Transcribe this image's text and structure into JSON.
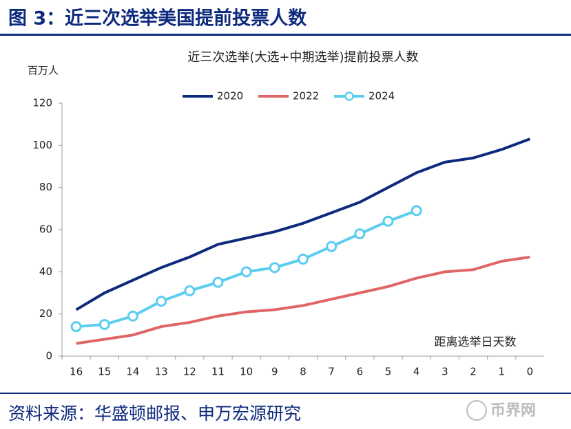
{
  "header": {
    "title": "图 3：近三次选举美国提前投票人数"
  },
  "footer": {
    "source": "资料来源：华盛顿邮报、申万宏源研究",
    "watermark": "币界网"
  },
  "chart_data": {
    "type": "line",
    "title": "近三次选举(大选+中期选举)提前投票人数",
    "y_label": "百万人",
    "x_label": "距离选举日天数",
    "categories": [
      "16",
      "15",
      "14",
      "13",
      "12",
      "11",
      "10",
      "9",
      "8",
      "7",
      "6",
      "5",
      "4",
      "3",
      "2",
      "1",
      "0"
    ],
    "series": [
      {
        "name": "2020",
        "color": "#0d2a7d",
        "marker": false,
        "values": [
          22,
          30,
          36,
          42,
          47,
          53,
          56,
          59,
          63,
          68,
          73,
          80,
          87,
          92,
          94,
          98,
          103
        ]
      },
      {
        "name": "2022",
        "color": "#e06666",
        "marker": false,
        "values": [
          6,
          8,
          10,
          14,
          16,
          19,
          21,
          22,
          24,
          27,
          30,
          33,
          37,
          40,
          41,
          45,
          47
        ]
      },
      {
        "name": "2024",
        "color": "#5bcdf0",
        "marker": true,
        "values": [
          14,
          15,
          19,
          26,
          31,
          35,
          40,
          42,
          46,
          52,
          58,
          64,
          69,
          null,
          null,
          null,
          null
        ]
      }
    ],
    "ylim": [
      0,
      120
    ],
    "yticks": [
      0,
      20,
      40,
      60,
      80,
      100,
      120
    ],
    "grid": false,
    "legend": "top"
  }
}
